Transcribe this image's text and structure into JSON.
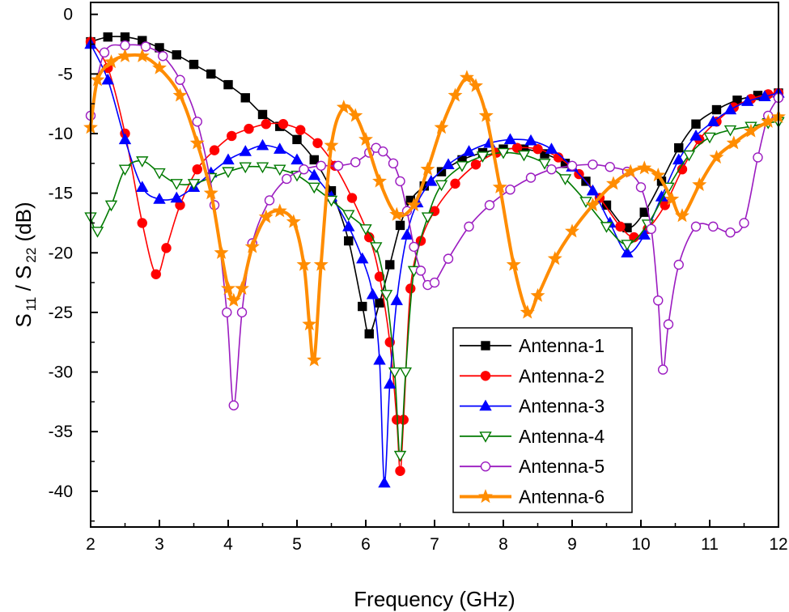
{
  "chart_data": {
    "type": "line",
    "xlabel": "Frequency (GHz)",
    "ylabel": {
      "main": "S",
      "sub1": "11",
      "sep": " / S",
      "sub2": "22",
      "unit": " (dB)"
    },
    "xlim": [
      2,
      12
    ],
    "ylim": [
      -43,
      1
    ],
    "xticks": [
      "2",
      "3",
      "4",
      "5",
      "6",
      "7",
      "8",
      "9",
      "10",
      "11",
      "12"
    ],
    "yticks": [
      "0",
      "-5",
      "-10",
      "-15",
      "-20",
      "-25",
      "-30",
      "-35",
      "-40"
    ],
    "grid": false,
    "legend_position": "bottom-right",
    "series": [
      {
        "name": "Antenna-1",
        "color": "#000000",
        "marker": "square",
        "filled": true,
        "thick": false,
        "x": [
          2.0,
          2.25,
          2.5,
          2.75,
          3.0,
          3.25,
          3.5,
          3.75,
          4.0,
          4.25,
          4.5,
          4.75,
          5.0,
          5.25,
          5.5,
          5.75,
          5.95,
          6.05,
          6.2,
          6.35,
          6.5,
          6.65,
          6.85,
          7.1,
          7.4,
          7.7,
          8.0,
          8.3,
          8.6,
          8.9,
          9.2,
          9.5,
          9.8,
          10.05,
          10.3,
          10.55,
          10.8,
          11.1,
          11.4,
          11.7,
          12.0
        ],
        "y": [
          -2.3,
          -1.9,
          -1.9,
          -2.2,
          -2.8,
          -3.4,
          -4.2,
          -5.0,
          -5.9,
          -7.0,
          -8.4,
          -9.4,
          -10.5,
          -12.2,
          -14.8,
          -19.0,
          -24.5,
          -26.8,
          -24.2,
          -21.0,
          -17.7,
          -15.6,
          -14.4,
          -13.2,
          -12.2,
          -11.6,
          -11.3,
          -11.3,
          -11.7,
          -12.5,
          -14.0,
          -16.0,
          -17.9,
          -16.6,
          -14.0,
          -11.2,
          -9.2,
          -8.0,
          -7.2,
          -6.8,
          -6.6
        ]
      },
      {
        "name": "Antenna-2",
        "color": "#ff0000",
        "marker": "circle",
        "filled": true,
        "thick": false,
        "x": [
          2.0,
          2.25,
          2.5,
          2.75,
          2.95,
          3.1,
          3.3,
          3.55,
          3.8,
          4.05,
          4.3,
          4.55,
          4.8,
          5.05,
          5.3,
          5.55,
          5.8,
          6.05,
          6.2,
          6.35,
          6.45,
          6.5,
          6.55,
          6.65,
          6.8,
          7.0,
          7.3,
          7.6,
          7.9,
          8.2,
          8.5,
          8.8,
          9.1,
          9.4,
          9.7,
          9.9,
          10.1,
          10.35,
          10.6,
          10.85,
          11.1,
          11.35,
          11.6,
          11.85,
          12.0
        ],
        "y": [
          -2.3,
          -4.5,
          -10.0,
          -17.5,
          -21.8,
          -19.6,
          -16.0,
          -13.0,
          -11.4,
          -10.2,
          -9.6,
          -9.2,
          -9.2,
          -9.7,
          -10.8,
          -12.7,
          -15.4,
          -18.7,
          -22.0,
          -27.5,
          -34.0,
          -38.3,
          -34.0,
          -23.0,
          -19.0,
          -16.5,
          -14.2,
          -12.6,
          -11.6,
          -11.2,
          -11.3,
          -12.0,
          -13.4,
          -15.4,
          -17.8,
          -18.7,
          -18.0,
          -16.0,
          -13.0,
          -10.5,
          -9.0,
          -7.8,
          -7.1,
          -6.7,
          -6.6
        ]
      },
      {
        "name": "Antenna-3",
        "color": "#0000ff",
        "marker": "triangle",
        "filled": true,
        "thick": false,
        "x": [
          2.0,
          2.25,
          2.5,
          2.75,
          3.0,
          3.25,
          3.5,
          3.75,
          4.0,
          4.25,
          4.5,
          4.75,
          5.0,
          5.25,
          5.5,
          5.75,
          5.95,
          6.1,
          6.2,
          6.27,
          6.35,
          6.45,
          6.6,
          6.75,
          6.95,
          7.2,
          7.5,
          7.8,
          8.1,
          8.4,
          8.7,
          9.0,
          9.3,
          9.55,
          9.8,
          10.05,
          10.3,
          10.55,
          10.8,
          11.05,
          11.3,
          11.55,
          11.8,
          12.0
        ],
        "y": [
          -2.5,
          -5.5,
          -10.5,
          -14.5,
          -15.5,
          -15.4,
          -14.5,
          -13.3,
          -12.2,
          -11.5,
          -11.0,
          -11.3,
          -12.2,
          -13.5,
          -15.3,
          -17.8,
          -20.5,
          -23.5,
          -29.0,
          -39.3,
          -31.0,
          -24.0,
          -18.5,
          -15.8,
          -14.0,
          -12.6,
          -11.5,
          -10.8,
          -10.5,
          -10.6,
          -11.3,
          -12.8,
          -14.8,
          -17.5,
          -20.0,
          -18.5,
          -15.3,
          -12.2,
          -10.2,
          -9.0,
          -8.0,
          -7.3,
          -6.9,
          -6.6
        ]
      },
      {
        "name": "Antenna-4",
        "color": "#007a00",
        "marker": "triangle-down",
        "filled": false,
        "thick": false,
        "x": [
          2.0,
          2.1,
          2.3,
          2.5,
          2.75,
          3.0,
          3.25,
          3.5,
          3.75,
          4.0,
          4.25,
          4.5,
          4.75,
          5.0,
          5.25,
          5.5,
          5.75,
          6.0,
          6.15,
          6.3,
          6.42,
          6.5,
          6.58,
          6.7,
          6.9,
          7.1,
          7.4,
          7.7,
          8.0,
          8.3,
          8.6,
          8.9,
          9.2,
          9.5,
          9.8,
          10.1,
          10.4,
          10.7,
          11.0,
          11.3,
          11.6,
          11.85,
          12.0
        ],
        "y": [
          -17.0,
          -18.2,
          -16.0,
          -13.0,
          -12.3,
          -13.3,
          -14.2,
          -14.2,
          -13.7,
          -13.2,
          -12.8,
          -12.8,
          -13.0,
          -13.5,
          -14.5,
          -15.6,
          -16.8,
          -18.0,
          -19.5,
          -23.5,
          -30.0,
          -37.0,
          -30.0,
          -21.5,
          -17.0,
          -14.3,
          -12.7,
          -11.9,
          -11.6,
          -11.8,
          -12.5,
          -13.8,
          -15.7,
          -17.8,
          -19.3,
          -17.6,
          -14.5,
          -11.8,
          -10.3,
          -9.7,
          -9.4,
          -9.1,
          -9.0
        ]
      },
      {
        "name": "Antenna-5",
        "color": "#9b1bc0",
        "marker": "circle",
        "filled": false,
        "thick": false,
        "x": [
          2.0,
          2.2,
          2.5,
          2.8,
          3.05,
          3.3,
          3.55,
          3.8,
          3.98,
          4.08,
          4.2,
          4.35,
          4.6,
          4.85,
          5.1,
          5.35,
          5.6,
          5.85,
          6.05,
          6.15,
          6.25,
          6.4,
          6.5,
          6.6,
          6.7,
          6.8,
          6.9,
          7.0,
          7.2,
          7.5,
          7.8,
          8.1,
          8.4,
          8.7,
          9.0,
          9.3,
          9.55,
          9.8,
          10.0,
          10.15,
          10.25,
          10.32,
          10.4,
          10.55,
          10.8,
          11.05,
          11.3,
          11.5,
          11.7,
          11.85,
          12.0
        ],
        "y": [
          -8.5,
          -3.2,
          -2.6,
          -2.7,
          -3.5,
          -5.5,
          -9.0,
          -16.0,
          -25.0,
          -32.8,
          -25.0,
          -19.2,
          -15.6,
          -13.8,
          -13.0,
          -12.7,
          -12.7,
          -12.4,
          -11.6,
          -11.2,
          -11.5,
          -12.5,
          -14.0,
          -16.5,
          -19.5,
          -21.5,
          -22.7,
          -22.5,
          -20.5,
          -17.8,
          -16.0,
          -14.7,
          -13.7,
          -13.0,
          -12.7,
          -12.6,
          -12.8,
          -13.2,
          -14.5,
          -18.0,
          -24.0,
          -29.8,
          -26.0,
          -21.0,
          -17.8,
          -17.8,
          -18.3,
          -17.5,
          -12.0,
          -8.5,
          -7.0
        ]
      },
      {
        "name": "Antenna-6",
        "color": "#ff8c00",
        "marker": "star",
        "filled": true,
        "thick": true,
        "x": [
          2.0,
          2.1,
          2.3,
          2.5,
          2.75,
          3.0,
          3.3,
          3.55,
          3.75,
          3.9,
          4.0,
          4.08,
          4.2,
          4.35,
          4.55,
          4.75,
          4.95,
          5.1,
          5.18,
          5.25,
          5.35,
          5.5,
          5.68,
          5.85,
          6.0,
          6.2,
          6.45,
          6.7,
          6.9,
          7.1,
          7.3,
          7.47,
          7.6,
          7.75,
          7.95,
          8.15,
          8.35,
          8.5,
          8.75,
          9.0,
          9.3,
          9.6,
          9.85,
          10.05,
          10.25,
          10.45,
          10.6,
          10.85,
          11.1,
          11.35,
          11.6,
          11.85,
          12.0
        ],
        "y": [
          -9.5,
          -5.5,
          -4.0,
          -3.5,
          -3.5,
          -4.5,
          -6.8,
          -10.8,
          -15.0,
          -20.0,
          -23.0,
          -24.0,
          -23.0,
          -19.5,
          -17.0,
          -16.5,
          -17.4,
          -21.0,
          -26.0,
          -29.0,
          -21.0,
          -11.0,
          -7.8,
          -8.5,
          -10.5,
          -14.0,
          -16.8,
          -16.0,
          -13.0,
          -9.5,
          -6.8,
          -5.3,
          -6.0,
          -8.5,
          -14.5,
          -21.0,
          -25.0,
          -23.6,
          -20.5,
          -18.2,
          -16.0,
          -14.2,
          -13.2,
          -12.9,
          -13.5,
          -15.5,
          -16.9,
          -14.3,
          -12.0,
          -10.8,
          -9.8,
          -9.0,
          -8.6
        ]
      }
    ]
  }
}
